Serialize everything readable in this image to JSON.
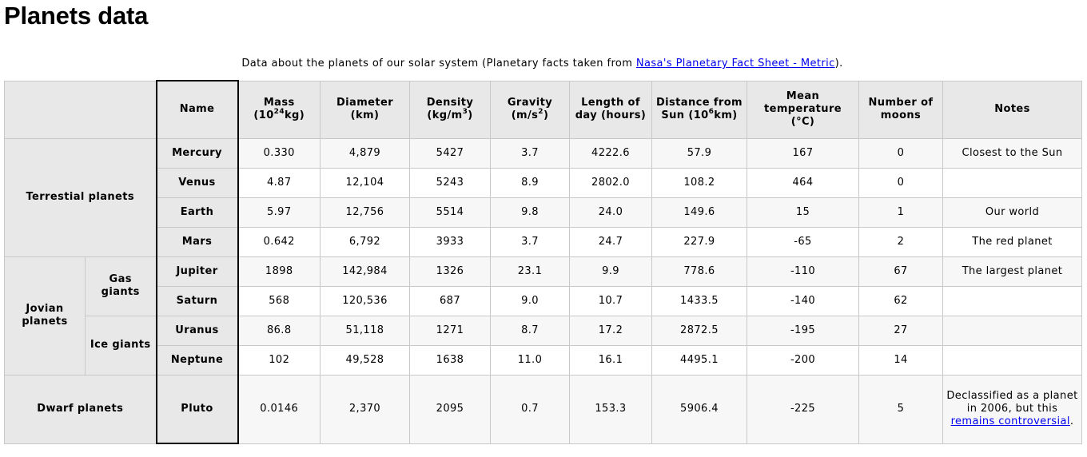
{
  "page": {
    "title": "Planets data",
    "caption_text": "Data about the planets of our solar system (Planetary facts taken from ",
    "caption_link": "Nasa's Planetary Fact Sheet - Metric",
    "caption_end": ")."
  },
  "headers": {
    "name": "Name",
    "mass": "Mass (10",
    "mass_sup": "24",
    "mass_unit": "kg)",
    "diameter": "Diameter (km)",
    "density": "Density (kg/m",
    "density_sup": "3",
    "density_end": ")",
    "gravity": "Gravity (m/s",
    "gravity_sup": "2",
    "gravity_end": ")",
    "day": "Length of day (hours)",
    "distance": "Distance from Sun (10",
    "distance_sup": "6",
    "distance_unit": "km)",
    "temp": "Mean temperature (°C)",
    "moons": "Number of moons",
    "notes": "Notes"
  },
  "groups": {
    "terrestrial": "Terrestial planets",
    "jovian": "Jovian planets",
    "gas": "Gas giants",
    "ice": "Ice giants",
    "dwarf": "Dwarf planets"
  },
  "planets": [
    {
      "name": "Mercury",
      "mass": "0.330",
      "diameter": "4,879",
      "density": "5427",
      "gravity": "3.7",
      "day": "4222.6",
      "distance": "57.9",
      "temp": "167",
      "moons": "0",
      "notes": "Closest to the Sun"
    },
    {
      "name": "Venus",
      "mass": "4.87",
      "diameter": "12,104",
      "density": "5243",
      "gravity": "8.9",
      "day": "2802.0",
      "distance": "108.2",
      "temp": "464",
      "moons": "0",
      "notes": ""
    },
    {
      "name": "Earth",
      "mass": "5.97",
      "diameter": "12,756",
      "density": "5514",
      "gravity": "9.8",
      "day": "24.0",
      "distance": "149.6",
      "temp": "15",
      "moons": "1",
      "notes": "Our world"
    },
    {
      "name": "Mars",
      "mass": "0.642",
      "diameter": "6,792",
      "density": "3933",
      "gravity": "3.7",
      "day": "24.7",
      "distance": "227.9",
      "temp": "-65",
      "moons": "2",
      "notes": "The red planet"
    },
    {
      "name": "Jupiter",
      "mass": "1898",
      "diameter": "142,984",
      "density": "1326",
      "gravity": "23.1",
      "day": "9.9",
      "distance": "778.6",
      "temp": "-110",
      "moons": "67",
      "notes": "The largest planet"
    },
    {
      "name": "Saturn",
      "mass": "568",
      "diameter": "120,536",
      "density": "687",
      "gravity": "9.0",
      "day": "10.7",
      "distance": "1433.5",
      "temp": "-140",
      "moons": "62",
      "notes": ""
    },
    {
      "name": "Uranus",
      "mass": "86.8",
      "diameter": "51,118",
      "density": "1271",
      "gravity": "8.7",
      "day": "17.2",
      "distance": "2872.5",
      "temp": "-195",
      "moons": "27",
      "notes": ""
    },
    {
      "name": "Neptune",
      "mass": "102",
      "diameter": "49,528",
      "density": "1638",
      "gravity": "11.0",
      "day": "16.1",
      "distance": "4495.1",
      "temp": "-200",
      "moons": "14",
      "notes": ""
    },
    {
      "name": "Pluto",
      "mass": "0.0146",
      "diameter": "2,370",
      "density": "2095",
      "gravity": "0.7",
      "day": "153.3",
      "distance": "5906.4",
      "temp": "-225",
      "moons": "5",
      "notes": "Declassified as a planet in 2006, but this ",
      "notes_link": "remains controversial",
      "notes_end": "."
    }
  ]
}
